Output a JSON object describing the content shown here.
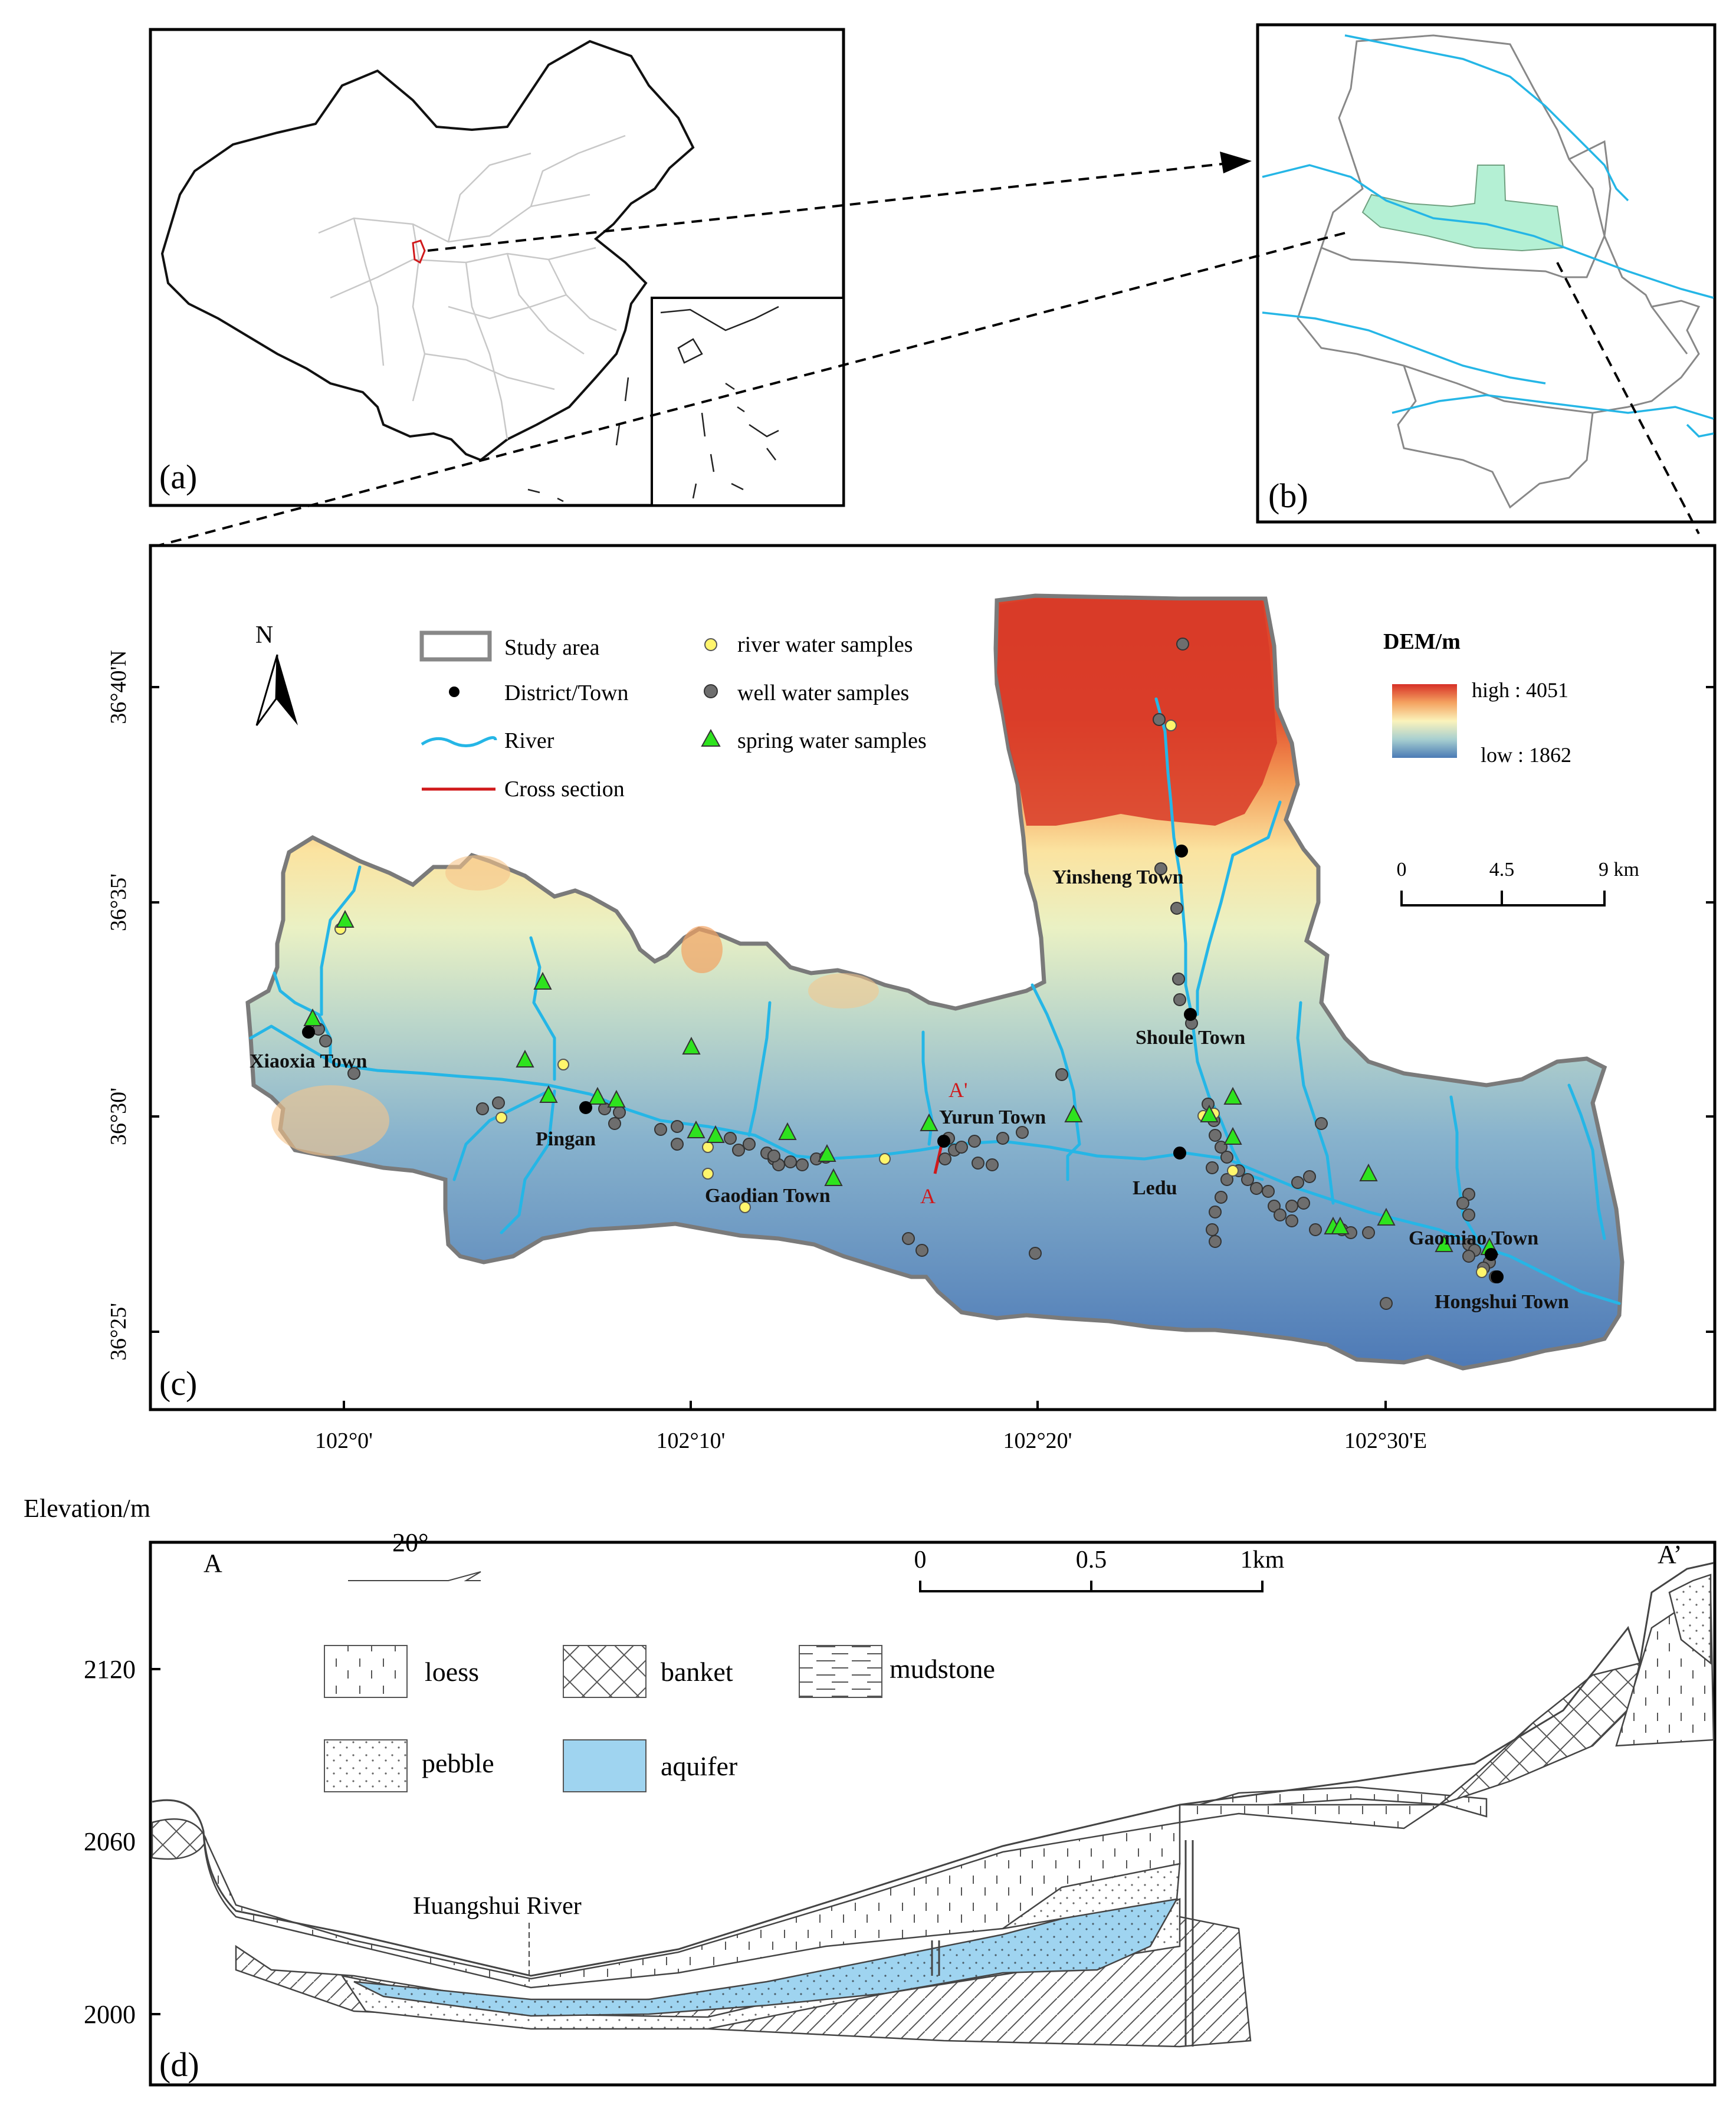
{
  "panels": {
    "a": {
      "label": "(a)"
    },
    "b": {
      "label": "(b)"
    },
    "c": {
      "label": "(c)"
    },
    "d": {
      "label": "(d)"
    }
  },
  "legend": {
    "study_area": "Study area",
    "district_town": "District/Town",
    "river": "River",
    "cross_section": "Cross section",
    "river_samples": "river water samples",
    "well_samples": "well water samples",
    "spring_samples": "spring water samples"
  },
  "dem": {
    "title": "DEM/m",
    "high": "high : 4051",
    "low": "low : 1862",
    "colors": [
      "#d73027",
      "#f4a260",
      "#fbf3bb",
      "#a7cfd0",
      "#4a7ab5"
    ]
  },
  "map_scale": {
    "t0": "0",
    "t1": "4.5",
    "t2": "9 km"
  },
  "north": "N",
  "lat_labels": [
    "36°40'N",
    "36°35'",
    "36°30'",
    "36°25'"
  ],
  "lon_labels": [
    "102°0'",
    "102°10'",
    "102°20'",
    "102°30'E"
  ],
  "towns": [
    {
      "name": "Xiaoxia Town"
    },
    {
      "name": "Pingan"
    },
    {
      "name": "Gaodian Town"
    },
    {
      "name": "Yurun Town"
    },
    {
      "name": "Yinsheng Town"
    },
    {
      "name": "Shoule Town"
    },
    {
      "name": "Ledu"
    },
    {
      "name": "Gaomiao Town"
    },
    {
      "name": "Hongshui Town"
    }
  ],
  "section_marks": {
    "a": "A",
    "a_prime": "A'"
  },
  "cross_section": {
    "y_title": "Elevation/m",
    "y_ticks": [
      "2120",
      "2060",
      "2000"
    ],
    "dip": "20°",
    "scale": {
      "t0": "0",
      "t1": "0.5",
      "t2": "1km"
    },
    "end_a": "A",
    "end_a_prime": "A’",
    "river_label": "Huangshui River",
    "legend": {
      "loess": "loess",
      "banket": "banket",
      "mudstone": "mudstone",
      "pebble": "pebble",
      "aquifer": "aquifer"
    },
    "aquifer_color": "#9fd4f0"
  },
  "colors": {
    "river": "#25b6e6",
    "cross_section_line": "#d0191b",
    "river_sample": "#fff56c",
    "well_sample": "#6e6e6e",
    "spring_sample": "#2ee31e",
    "study_area_highlight": "#b4f0d4"
  }
}
